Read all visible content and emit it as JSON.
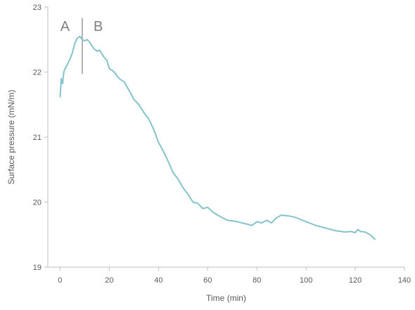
{
  "chart_data": {
    "type": "line",
    "xlabel": "Time (min)",
    "ylabel": "Surface pressure (mN/m)",
    "xlim": [
      -5,
      140
    ],
    "ylim": [
      19,
      23
    ],
    "x_ticks": [
      0,
      20,
      40,
      60,
      80,
      100,
      120,
      140
    ],
    "y_ticks": [
      19,
      20,
      21,
      22,
      23
    ],
    "grid": false,
    "line_color": "#85c3cc",
    "annotations": [
      {
        "text": "A",
        "x": 2
      },
      {
        "text": "B",
        "x": 15.5
      }
    ],
    "divider": {
      "x": 9,
      "y_range": [
        21.97,
        22.83
      ]
    },
    "series": [
      {
        "x": [
          0,
          0.5,
          1,
          1.5,
          2,
          3,
          4,
          5,
          6,
          7,
          8,
          9,
          10,
          11,
          12,
          13,
          14,
          15,
          16,
          17,
          18,
          19,
          20,
          21,
          22,
          24,
          26,
          28,
          30,
          32,
          34,
          36,
          38,
          40,
          42,
          44,
          46,
          48,
          50,
          52,
          54,
          56,
          58,
          60,
          62,
          64,
          66,
          68,
          70,
          72,
          74,
          76,
          78,
          80,
          82,
          84,
          86,
          88,
          90,
          92,
          94,
          96,
          98,
          100,
          102,
          104,
          106,
          108,
          110,
          112,
          114,
          116,
          118,
          120,
          121,
          122,
          124,
          126,
          128
        ],
        "y": [
          21.62,
          21.9,
          21.82,
          22.0,
          22.05,
          22.12,
          22.2,
          22.3,
          22.45,
          22.52,
          22.55,
          22.5,
          22.48,
          22.5,
          22.46,
          22.4,
          22.35,
          22.32,
          22.34,
          22.28,
          22.22,
          22.18,
          22.05,
          22.03,
          22.0,
          21.9,
          21.85,
          21.72,
          21.58,
          21.5,
          21.38,
          21.28,
          21.12,
          20.92,
          20.78,
          20.62,
          20.45,
          20.35,
          20.22,
          20.12,
          20.0,
          19.98,
          19.9,
          19.92,
          19.85,
          19.8,
          19.76,
          19.72,
          19.71,
          19.7,
          19.68,
          19.66,
          19.64,
          19.7,
          19.68,
          19.72,
          19.68,
          19.76,
          19.8,
          19.79,
          19.78,
          19.76,
          19.73,
          19.7,
          19.67,
          19.64,
          19.62,
          19.6,
          19.58,
          19.56,
          19.55,
          19.54,
          19.55,
          19.53,
          19.58,
          19.55,
          19.54,
          19.5,
          19.43
        ]
      }
    ]
  }
}
